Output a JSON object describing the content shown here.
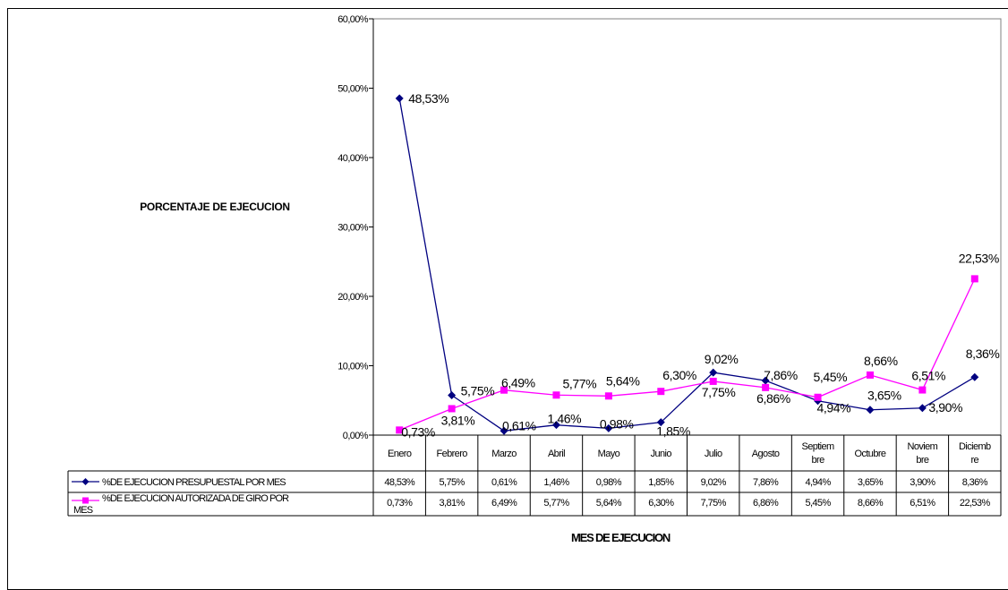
{
  "chart_data": {
    "type": "line",
    "title": "",
    "ylabel": "PORCENTAJE DE EJECUCION",
    "xlabel": "MES DE EJECUCION",
    "ylim": [
      0,
      60
    ],
    "ytick_values": [
      0,
      10,
      20,
      30,
      40,
      50,
      60
    ],
    "ytick_labels": [
      "0,00%",
      "10,00%",
      "20,00%",
      "30,00%",
      "40,00%",
      "50,00%",
      "60,00%"
    ],
    "categories": [
      [
        "Enero"
      ],
      [
        "Febrero"
      ],
      [
        "Marzo"
      ],
      [
        "Abril"
      ],
      [
        "Mayo"
      ],
      [
        "Junio"
      ],
      [
        "Julio"
      ],
      [
        "Agosto"
      ],
      [
        "Septiem",
        "bre"
      ],
      [
        "Octubre"
      ],
      [
        "Noviem",
        "bre"
      ],
      [
        "Diciemb",
        "re"
      ]
    ],
    "series": [
      {
        "name": [
          "%DE EJECUCION PRESUPUESTAL POR MES"
        ],
        "color": "#000080",
        "marker": "diamond",
        "values": [
          48.53,
          5.75,
          0.61,
          1.46,
          0.98,
          1.85,
          9.02,
          7.86,
          4.94,
          3.65,
          3.9,
          8.36
        ],
        "point_labels": [
          "48,53%",
          "5,75%",
          "0,61%",
          "1,46%",
          "0,98%",
          "1,85%",
          "9,02%",
          "7,86%",
          "4,94%",
          "3,65%",
          "3,90%",
          "8,36%"
        ],
        "table_labels": [
          "48,53%",
          "5,75%",
          "0,61%",
          "1,46%",
          "0,98%",
          "1,85%",
          "9,02%",
          "7,86%",
          "4,94%",
          "3,65%",
          "3,90%",
          "8,36%"
        ]
      },
      {
        "name": [
          "%DE EJECUCION AUTORIZADA DE GIRO POR",
          "MES"
        ],
        "color": "#ff00ff",
        "marker": "square",
        "values": [
          0.73,
          3.81,
          6.49,
          5.77,
          5.64,
          6.3,
          7.75,
          6.86,
          5.45,
          8.66,
          6.51,
          22.53
        ],
        "point_labels": [
          "0,73%",
          "3,81%",
          "6,49%",
          "5,77%",
          "5,64%",
          "6,30%",
          "7,75%",
          "6,86%",
          "5,45%",
          "8,66%",
          "6,51%",
          "22,53%"
        ],
        "table_labels": [
          "0,73%",
          "3,81%",
          "6,49%",
          "5,77%",
          "5,64%",
          "6,30%",
          "7,75%",
          "6,86%",
          "5,45%",
          "8,66%",
          "6,51%",
          "22,53%"
        ]
      }
    ],
    "legend": "data-table-left",
    "grid": false
  }
}
